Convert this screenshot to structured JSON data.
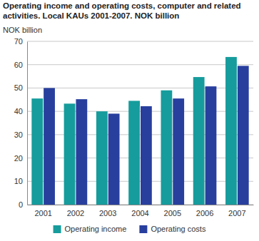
{
  "chart_data": {
    "type": "bar",
    "title": "Operating income and operating costs, computer and related activities. Local KAUs 2001-2007. NOK billion",
    "y_label": "NOK billion",
    "categories": [
      "2001",
      "2002",
      "2003",
      "2004",
      "2005",
      "2006",
      "2007"
    ],
    "series": [
      {
        "name": "Operating income",
        "color": "#169c9c",
        "values": [
          45.5,
          43.3,
          40,
          44.5,
          49,
          54.7,
          63.3
        ]
      },
      {
        "name": "Operating costs",
        "color": "#283f9e",
        "values": [
          50,
          45.2,
          39,
          42.2,
          45.5,
          50.7,
          59.5
        ]
      }
    ],
    "ylim": [
      0,
      70
    ],
    "yticks": [
      0,
      10,
      20,
      30,
      40,
      50,
      60,
      70
    ],
    "grid": true,
    "legend": "bottom"
  }
}
